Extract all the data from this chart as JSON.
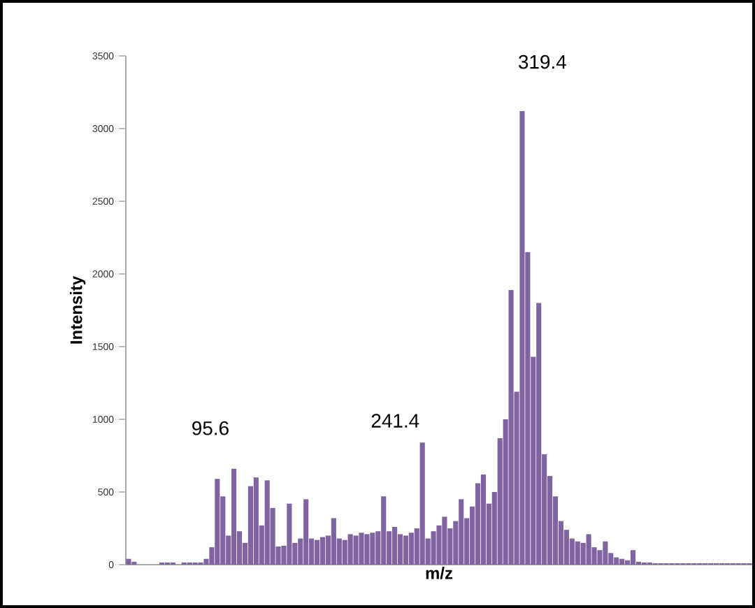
{
  "chart_data": {
    "type": "bar",
    "xlabel": "m/z",
    "ylabel": "Intensity",
    "categories": [
      null,
      null,
      null,
      null,
      null,
      null,
      null,
      null,
      null,
      null,
      null,
      null,
      null,
      null,
      null,
      null,
      null,
      null,
      null,
      null,
      null,
      null,
      null,
      null,
      null,
      null,
      null,
      null,
      null,
      null,
      null,
      null,
      null,
      null,
      null,
      null,
      null,
      null,
      null,
      null,
      null,
      null,
      null,
      null,
      null,
      null,
      null,
      null,
      null,
      null,
      null,
      null,
      null,
      null,
      null,
      null,
      null,
      null,
      null,
      null,
      null,
      null,
      null,
      null,
      null,
      null,
      null,
      null,
      null,
      null,
      null,
      null,
      null,
      null,
      null,
      null,
      null,
      null,
      null,
      null,
      null,
      null,
      null,
      null,
      null,
      null,
      null,
      null,
      null,
      null,
      null,
      null,
      null,
      null,
      null,
      null,
      null,
      null,
      null,
      null,
      null,
      null,
      null,
      null,
      null,
      null,
      null,
      null,
      null,
      null,
      null,
      null,
      null
    ],
    "values": [
      40,
      20,
      0,
      0,
      0,
      0,
      15,
      15,
      15,
      0,
      15,
      15,
      15,
      15,
      40,
      120,
      590,
      470,
      200,
      660,
      230,
      150,
      540,
      600,
      270,
      580,
      390,
      125,
      130,
      420,
      150,
      180,
      450,
      180,
      170,
      190,
      200,
      320,
      180,
      170,
      210,
      200,
      220,
      210,
      220,
      230,
      470,
      230,
      260,
      210,
      200,
      220,
      250,
      840,
      180,
      230,
      270,
      330,
      250,
      300,
      450,
      320,
      400,
      560,
      620,
      420,
      500,
      870,
      1000,
      1890,
      1190,
      3120,
      2150,
      1430,
      1800,
      760,
      610,
      470,
      300,
      240,
      180,
      160,
      150,
      210,
      120,
      100,
      160,
      80,
      50,
      40,
      30,
      100,
      20,
      15,
      15,
      10,
      10,
      10,
      10,
      10,
      10,
      10,
      10,
      10,
      10,
      10,
      10,
      10,
      10,
      10,
      10,
      10,
      10
    ],
    "color": "#8064a2",
    "ylim": [
      0,
      3500
    ],
    "yticks": [
      0,
      500,
      1000,
      1500,
      2000,
      2500,
      3000,
      3500
    ],
    "tick_labels": "y",
    "annotations": [
      "95.6",
      "241.4",
      "319.4"
    ]
  }
}
